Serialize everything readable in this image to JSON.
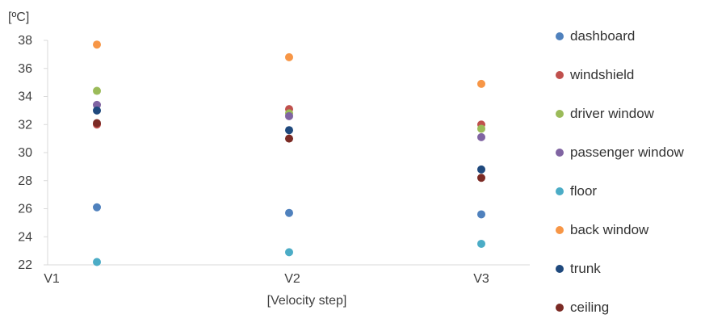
{
  "chart_data": {
    "type": "scatter",
    "ylabel": "[ºC]",
    "xlabel": "[Velocity step]",
    "ylim": [
      22,
      38
    ],
    "yticks": [
      22,
      24,
      26,
      28,
      30,
      32,
      34,
      36,
      38
    ],
    "categories": [
      "V1",
      "V2",
      "V3"
    ],
    "grid": false,
    "legend_position": "right",
    "series": [
      {
        "name": "dashboard",
        "color": "#4f81bd",
        "values": [
          26.1,
          25.7,
          25.6
        ]
      },
      {
        "name": "windshield",
        "color": "#c0504d",
        "values": [
          32.0,
          33.1,
          32.0
        ]
      },
      {
        "name": "driver window",
        "color": "#9bbb59",
        "values": [
          34.4,
          32.8,
          31.7
        ]
      },
      {
        "name": "passenger window",
        "color": "#8064a2",
        "values": [
          33.4,
          32.6,
          31.1
        ]
      },
      {
        "name": "floor",
        "color": "#4bacc6",
        "values": [
          22.2,
          22.9,
          23.5
        ]
      },
      {
        "name": "back window",
        "color": "#f79646",
        "values": [
          37.7,
          36.8,
          34.9
        ]
      },
      {
        "name": "trunk",
        "color": "#1f497d",
        "values": [
          33.0,
          31.6,
          28.8
        ]
      },
      {
        "name": "ceiling",
        "color": "#7b2a24",
        "values": [
          32.1,
          31.0,
          28.2
        ]
      }
    ]
  }
}
